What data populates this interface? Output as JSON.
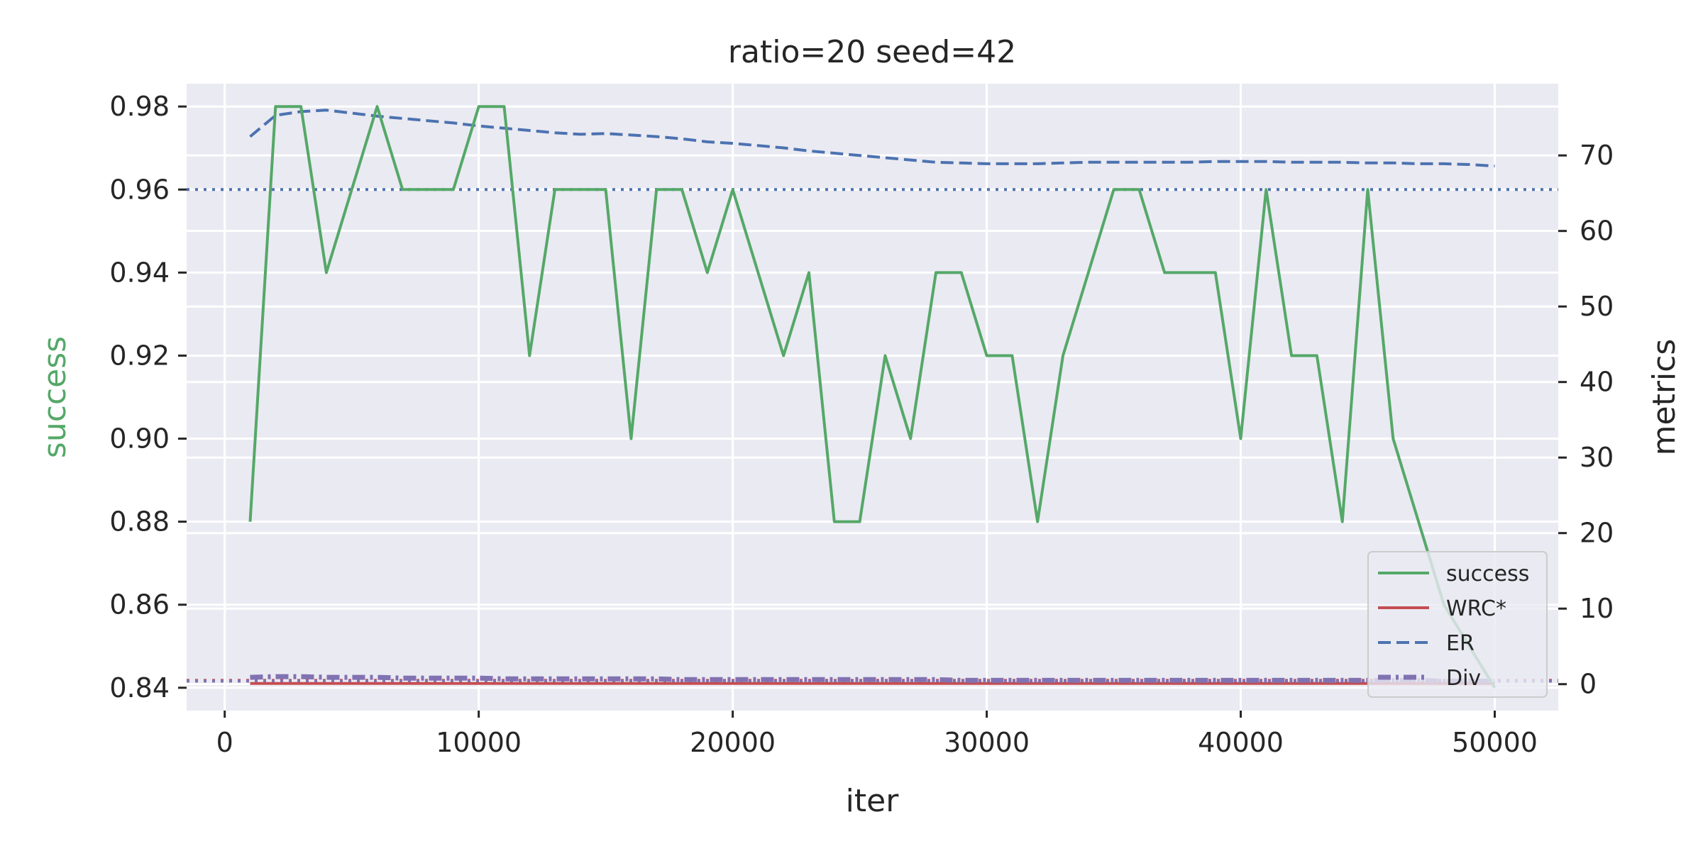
{
  "chart_data": {
    "type": "line",
    "title": "ratio=20 seed=42",
    "xlabel": "iter",
    "ylabel_left": "success",
    "ylabel_right": "metrics",
    "xlim": [
      -1500,
      52500
    ],
    "ylim_left": [
      0.8345,
      0.9855
    ],
    "ylim_right": [
      -3.5,
      79.5
    ],
    "xticks": [
      0,
      10000,
      20000,
      30000,
      40000,
      50000
    ],
    "yticks_left": [
      0.84,
      0.86,
      0.88,
      0.9,
      0.92,
      0.94,
      0.96,
      0.98
    ],
    "yticks_left_labels": [
      "0.84",
      "0.86",
      "0.88",
      "0.90",
      "0.92",
      "0.94",
      "0.96",
      "0.98"
    ],
    "yticks_right": [
      0,
      10,
      20,
      30,
      40,
      50,
      60,
      70
    ],
    "grid": true,
    "legend_position": "lower-right",
    "x": [
      1000,
      2000,
      3000,
      4000,
      5000,
      6000,
      7000,
      8000,
      9000,
      10000,
      11000,
      12000,
      13000,
      14000,
      15000,
      16000,
      17000,
      18000,
      19000,
      20000,
      21000,
      22000,
      23000,
      24000,
      25000,
      26000,
      27000,
      28000,
      29000,
      30000,
      31000,
      32000,
      33000,
      34000,
      35000,
      36000,
      37000,
      38000,
      39000,
      40000,
      41000,
      42000,
      43000,
      44000,
      45000,
      46000,
      47000,
      48000,
      49000,
      50000
    ],
    "series": [
      {
        "name": "success",
        "axis": "left",
        "color": "#55a868",
        "style": "solid",
        "values": [
          0.88,
          0.98,
          0.98,
          0.94,
          0.96,
          0.98,
          0.96,
          0.96,
          0.96,
          0.98,
          0.98,
          0.92,
          0.96,
          0.96,
          0.96,
          0.9,
          0.96,
          0.96,
          0.94,
          0.96,
          0.94,
          0.92,
          0.94,
          0.88,
          0.88,
          0.92,
          0.9,
          0.94,
          0.94,
          0.92,
          0.92,
          0.88,
          0.92,
          0.94,
          0.96,
          0.96,
          0.94,
          0.94,
          0.94,
          0.9,
          0.96,
          0.92,
          0.92,
          0.88,
          0.96,
          0.9,
          0.88,
          0.86,
          0.85,
          0.84
        ]
      },
      {
        "name": "WRC*",
        "axis": "right",
        "color": "#c44e52",
        "style": "solid",
        "values": [
          0.1,
          0.1,
          0.1,
          0.1,
          0.1,
          0.1,
          0.1,
          0.1,
          0.1,
          0.1,
          0.1,
          0.1,
          0.1,
          0.1,
          0.1,
          0.1,
          0.1,
          0.1,
          0.1,
          0.1,
          0.1,
          0.1,
          0.1,
          0.1,
          0.1,
          0.1,
          0.1,
          0.1,
          0.1,
          0.1,
          0.1,
          0.1,
          0.1,
          0.1,
          0.1,
          0.1,
          0.1,
          0.1,
          0.1,
          0.1,
          0.1,
          0.1,
          0.1,
          0.1,
          0.1,
          0.1,
          0.1,
          0.1,
          0.1,
          0.1
        ]
      },
      {
        "name": "ER",
        "axis": "right",
        "color": "#4c72b0",
        "style": "dashed",
        "values": [
          72.5,
          75.3,
          75.8,
          76.0,
          75.6,
          75.2,
          74.9,
          74.6,
          74.3,
          73.9,
          73.6,
          73.3,
          73.0,
          72.8,
          72.9,
          72.7,
          72.5,
          72.2,
          71.8,
          71.6,
          71.3,
          71.0,
          70.6,
          70.3,
          70.0,
          69.7,
          69.4,
          69.1,
          69.0,
          68.9,
          68.9,
          68.9,
          69.0,
          69.1,
          69.1,
          69.1,
          69.1,
          69.1,
          69.2,
          69.2,
          69.2,
          69.1,
          69.1,
          69.1,
          69.0,
          69.0,
          68.9,
          68.9,
          68.8,
          68.6
        ]
      },
      {
        "name": "Div",
        "axis": "right",
        "color": "#8172b2",
        "style": "dashdot",
        "values": [
          0.9,
          1.0,
          1.0,
          0.9,
          0.9,
          0.9,
          0.8,
          0.8,
          0.8,
          0.8,
          0.7,
          0.7,
          0.7,
          0.7,
          0.7,
          0.7,
          0.7,
          0.6,
          0.6,
          0.6,
          0.6,
          0.6,
          0.6,
          0.6,
          0.6,
          0.6,
          0.6,
          0.6,
          0.5,
          0.5,
          0.5,
          0.5,
          0.5,
          0.5,
          0.5,
          0.5,
          0.5,
          0.5,
          0.5,
          0.5,
          0.5,
          0.5,
          0.5,
          0.5,
          0.5,
          0.5,
          0.5,
          0.4,
          0.4,
          0.4
        ]
      }
    ],
    "reference_lines": [
      {
        "axis": "left",
        "y": 0.96,
        "color": "#4c72b0",
        "style": "dotted"
      },
      {
        "axis": "right",
        "y": 0.5,
        "color": "#c44e52",
        "style": "dotted"
      },
      {
        "axis": "right",
        "y": 0.4,
        "color": "#8172b2",
        "style": "dotted"
      }
    ]
  }
}
